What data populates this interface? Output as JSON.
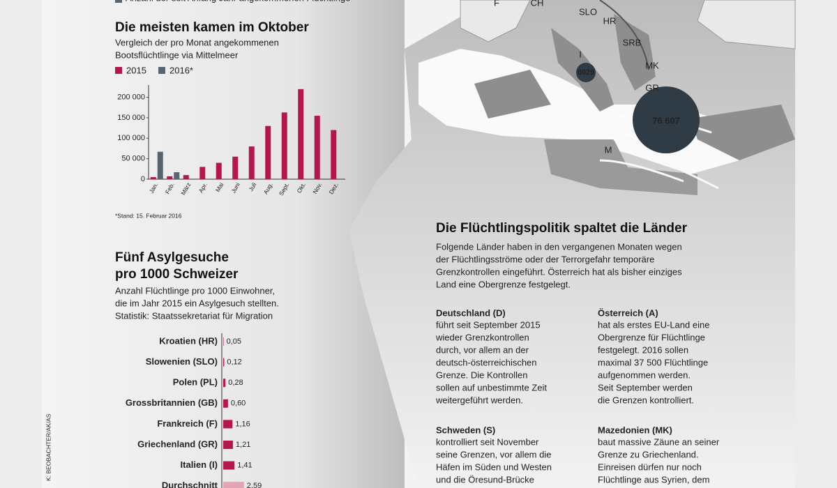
{
  "legend_top": "Anzahl der seit Anfang Jahr angekommenen Flüchtlinge",
  "chart_data": [
    {
      "type": "bar",
      "title": "Die meisten kamen im Oktober",
      "subtitle": [
        "Vergleich der pro Monat angekommenen",
        "Bootsflüchtlinge via Mittelmeer"
      ],
      "categories": [
        "Jan.",
        "Feb.",
        "März",
        "Apr.",
        "Mai",
        "Juni",
        "Juli",
        "Aug.",
        "Sept.",
        "Okt.",
        "Nov.",
        "Dez."
      ],
      "series": [
        {
          "name": "2015",
          "color": "#b5164b",
          "values": [
            5000,
            7000,
            10000,
            30000,
            40000,
            55000,
            80000,
            130000,
            163000,
            220000,
            155000,
            120000
          ]
        },
        {
          "name": "2016*",
          "color": "#56656f",
          "values": [
            67000,
            17000,
            null,
            null,
            null,
            null,
            null,
            null,
            null,
            null,
            null,
            null
          ]
        }
      ],
      "ylim": [
        0,
        230000
      ],
      "yticks": [
        0,
        {
          "value": 50000,
          "label": "50 000"
        },
        {
          "value": 100000,
          "label": "100 000"
        },
        {
          "value": 150000,
          "label": "150 000"
        },
        {
          "value": 200000,
          "label": "200 000"
        }
      ],
      "footnote": "*Stand: 15. Februar 2016"
    },
    {
      "type": "hbar",
      "title": [
        "Fünf Asylgesuche",
        "pro 1000 Schweizer"
      ],
      "subtitle": [
        "Anzahl Flüchtlinge pro 1000 Einwohner,",
        "die im Jahr 2015 ein Asylgesuch stellten.",
        "Statistik: Staatssekretariat für Migration"
      ],
      "categories": [
        "Kroatien (HR)",
        "Slowenien (SLO)",
        "Polen (PL)",
        "Grossbritannien (GB)",
        "Frankreich (F)",
        "Griechenland (GR)",
        "Italien (I)",
        "Durchschnitt"
      ],
      "values": [
        0.05,
        0.12,
        0.28,
        0.6,
        1.16,
        1.21,
        1.41,
        2.59
      ],
      "value_labels": [
        "0,05",
        "0,12",
        "0,28",
        "0,60",
        "1,16",
        "1,21",
        "1,41",
        "2,59"
      ],
      "colors": [
        "#b5164b",
        "#b5164b",
        "#b5164b",
        "#b5164b",
        "#b5164b",
        "#b5164b",
        "#b5164b",
        "#e4a3b3"
      ]
    }
  ],
  "map": {
    "labels": [
      "F",
      "CH",
      "SLO",
      "HR",
      "SRB",
      "MK",
      "GR",
      "I",
      "M"
    ],
    "bubbles": [
      "6029",
      "76 607"
    ]
  },
  "article": {
    "title": "Die Flüchtlingspolitik spaltet die Länder",
    "intro": [
      "Folgende Länder haben in den vergangenen Monaten wegen",
      "der Flüchtlingsströme oder der Terrorgefahr temporäre",
      "Grenzkontrollen eingeführt. Österreich hat als bisher einziges",
      "Land eine Obergrenze festgelegt."
    ],
    "sections": [
      {
        "title": "Deutschland (D)",
        "body": [
          "führt seit September 2015",
          "wieder Grenzkontrollen",
          "durch, vor allem an der",
          "deutsch-österreichischen",
          "Grenze. Die Kontrollen",
          "sollen auf unbestimmte Zeit",
          "weitergeführt werden."
        ]
      },
      {
        "title": "Österreich (A)",
        "body": [
          "hat als erstes EU-Land eine",
          "Obergrenze für Flüchtlinge",
          "festgelegt. 2016 sollen",
          "maximal 37 500 Flüchtlinge",
          "aufgenommen werden.",
          "Seit September werden",
          "die Grenzen kontrolliert."
        ]
      },
      {
        "title": "Schweden (S)",
        "body": [
          "kontrolliert seit November",
          "seine Grenzen, vor allem die",
          "Häfen im Süden und Westen",
          "und die Öresund-Brücke"
        ]
      },
      {
        "title": "Mazedonien (MK)",
        "body": [
          "baut massive Zäune an seiner",
          "Grenze zu Griechenland.",
          "Einreisen dürfen nur noch",
          "Flüchtlinge aus Syrien, dem"
        ]
      }
    ]
  },
  "credit": "K: BEOBACHTER/AK/AS"
}
